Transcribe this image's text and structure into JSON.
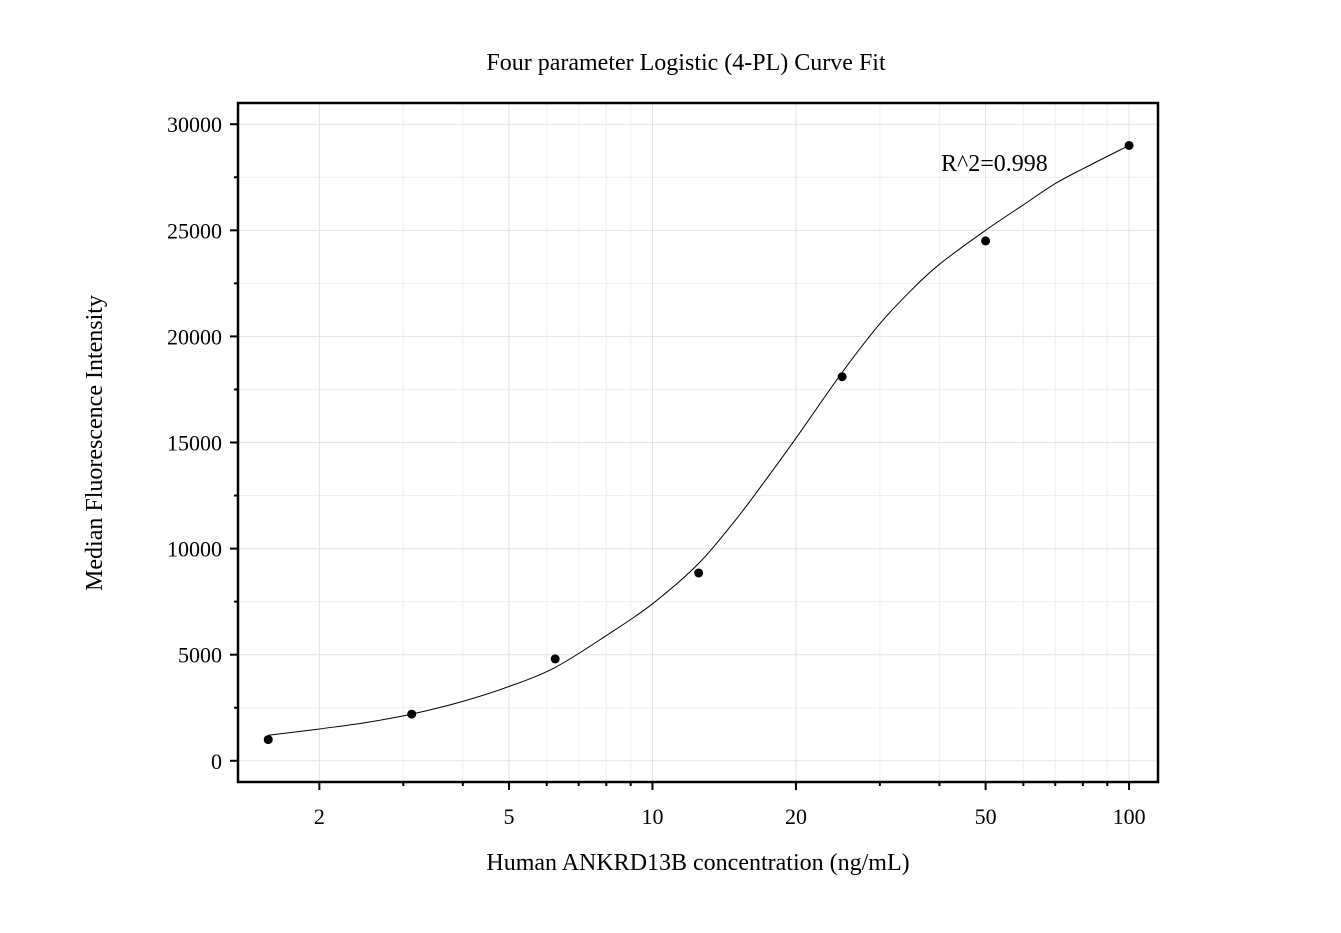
{
  "chart_data": {
    "type": "scatter",
    "title": "Four parameter Logistic (4-PL) Curve Fit",
    "xlabel": "Human ANKRD13B concentration (ng/mL)",
    "ylabel": "Median Fluorescence Intensity",
    "x_scale": "log",
    "xlim": [
      1.35,
      115
    ],
    "ylim": [
      -1000,
      31000
    ],
    "x_ticks": [
      2,
      5,
      10,
      20,
      50,
      100
    ],
    "x_tick_labels": [
      "2",
      "5",
      "10",
      "20",
      "50",
      "100"
    ],
    "y_ticks": [
      0,
      5000,
      10000,
      15000,
      20000,
      25000,
      30000
    ],
    "y_tick_labels": [
      "0",
      "5000",
      "10000",
      "15000",
      "20000",
      "25000",
      "30000"
    ],
    "grid": true,
    "points": {
      "x": [
        1.5625,
        3.125,
        6.25,
        12.5,
        25,
        50,
        100
      ],
      "y": [
        1000,
        2200,
        4800,
        8850,
        18100,
        24500,
        29000
      ]
    },
    "fit_curve": {
      "model": "4PL",
      "x": [
        1.5625,
        2,
        2.5,
        3.125,
        4,
        5,
        6.25,
        8,
        10,
        12.5,
        15,
        17.5,
        20,
        25,
        30,
        35,
        40,
        50,
        60,
        70,
        80,
        100
      ],
      "y": [
        1200,
        1500,
        1800,
        2200,
        2800,
        3500,
        4400,
        5900,
        7400,
        9300,
        11400,
        13400,
        15200,
        18300,
        20600,
        22200,
        23400,
        25000,
        26200,
        27200,
        27900,
        29000
      ]
    },
    "annotation": "R^2=0.998"
  }
}
